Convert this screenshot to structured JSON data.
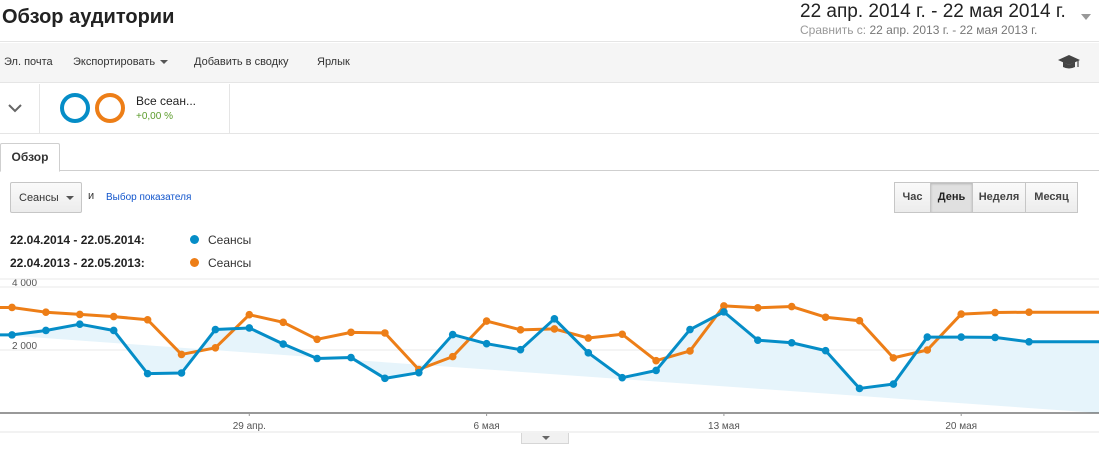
{
  "header": {
    "title": "Обзор аудитории",
    "date_range": "22 апр. 2014 г. - 22 мая 2014 г.",
    "compare_label": "Сравнить с:",
    "compare_range": "22 апр. 2013 г. - 22 мая 2013 г."
  },
  "toolbar": {
    "email": "Эл. почта",
    "export": "Экспортировать",
    "add_to_dashboard": "Добавить в сводку",
    "shortcut": "Ярлык"
  },
  "segment": {
    "name": "Все сеан...",
    "change": "+0,00 %"
  },
  "tabs": [
    "Обзор"
  ],
  "controls": {
    "metric": "Сеансы",
    "and": "и",
    "choose_metric": "Выбор показателя",
    "periods": [
      {
        "label": "Час",
        "active": false
      },
      {
        "label": "День",
        "active": true
      },
      {
        "label": "Неделя",
        "active": false
      },
      {
        "label": "Месяц",
        "active": false
      }
    ]
  },
  "legend": [
    {
      "range": "22.04.2014 - 22.05.2014:",
      "series": "Сеансы",
      "color": "#058dc7"
    },
    {
      "range": "22.04.2013 - 22.05.2013:",
      "series": "Сеансы",
      "color": "#ed7e17"
    }
  ],
  "chart_data": {
    "type": "line",
    "y_ticks": [
      "4 000",
      "2 000"
    ],
    "x_ticks": [
      {
        "label": "29 апр.",
        "index": 7
      },
      {
        "label": "6 мая",
        "index": 14
      },
      {
        "label": "13 мая",
        "index": 21
      },
      {
        "label": "20 мая",
        "index": 28
      }
    ],
    "ylim": [
      0,
      4000
    ],
    "grid": true,
    "series": [
      {
        "name": "Сеансы",
        "period": "22.04.2014 - 22.05.2014",
        "color": "#058dc7",
        "fill": "#e6f4fb",
        "values": [
          2480,
          2620,
          2820,
          2620,
          1250,
          1270,
          2650,
          2700,
          2190,
          1730,
          1760,
          1100,
          1280,
          2490,
          2200,
          2010,
          2990,
          1910,
          1120,
          1350,
          2650,
          3210,
          2310,
          2230,
          1980,
          780,
          920,
          2410,
          2410,
          2400,
          2260
        ]
      },
      {
        "name": "Сеансы",
        "period": "22.04.2013 - 22.05.2013",
        "color": "#ed7e17",
        "fill": "none",
        "values": [
          3350,
          3200,
          3130,
          3060,
          2960,
          1860,
          2070,
          3120,
          2880,
          2340,
          2560,
          2540,
          1380,
          1790,
          2920,
          2640,
          2670,
          2380,
          2500,
          1660,
          1970,
          3400,
          3340,
          3380,
          3040,
          2930,
          1750,
          2000,
          3140,
          3190,
          3200
        ]
      }
    ]
  }
}
